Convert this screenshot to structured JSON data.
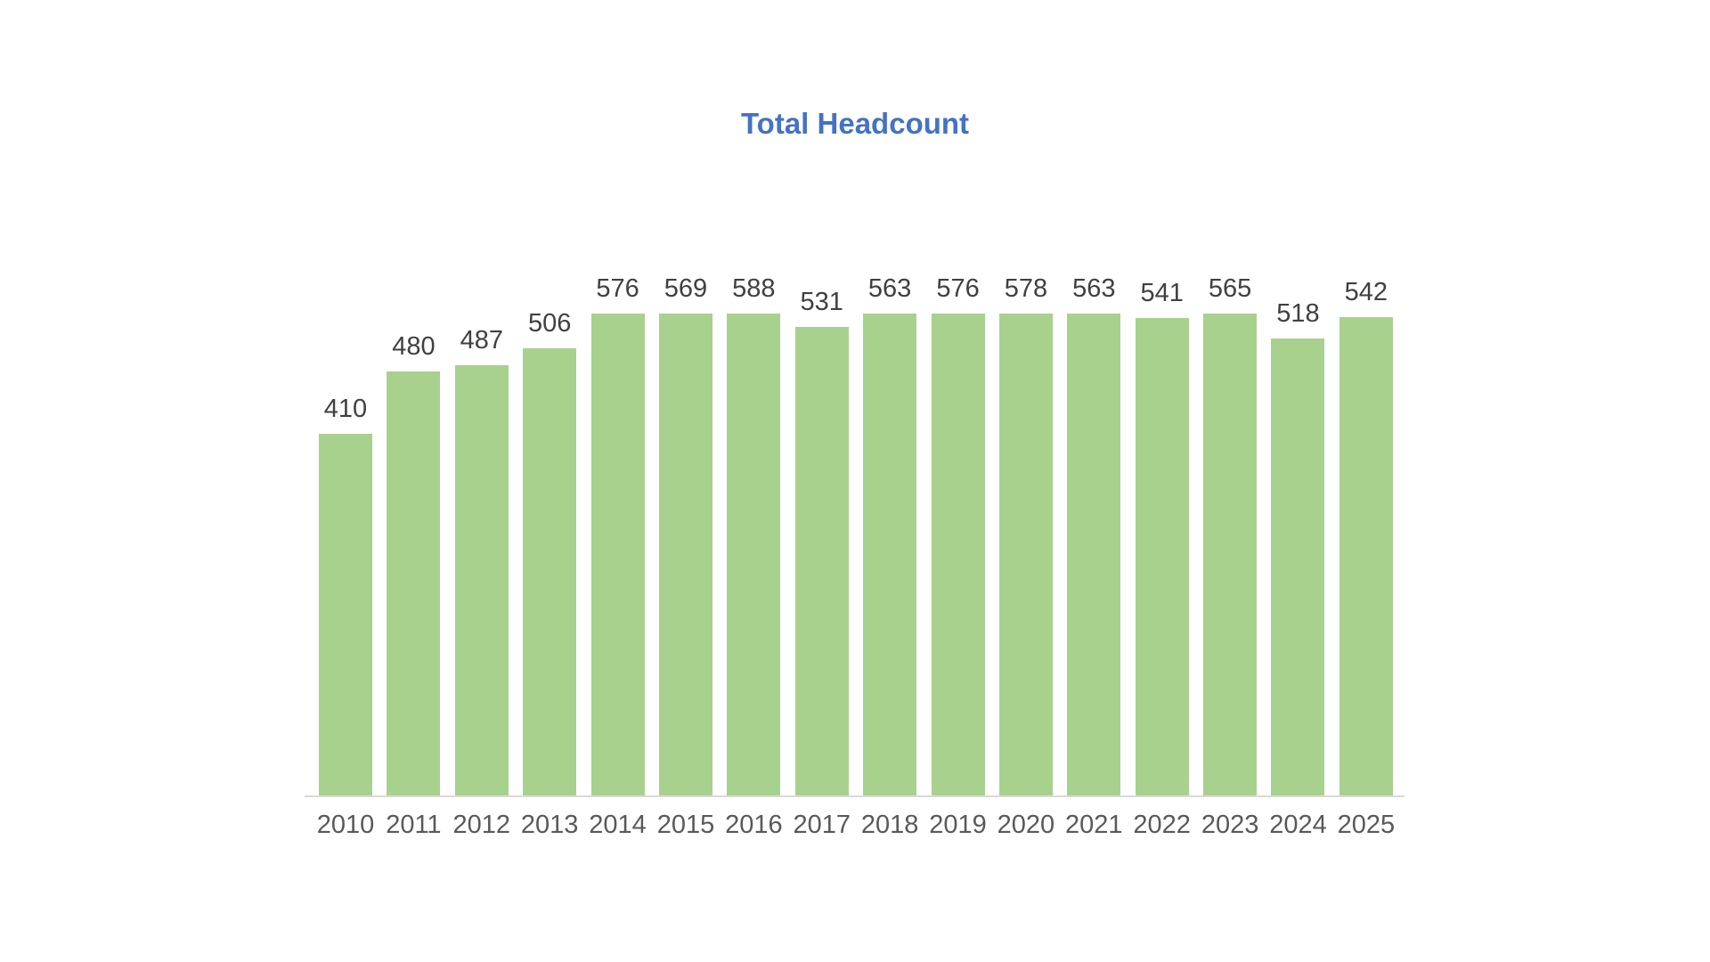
{
  "chart_data": {
    "type": "bar",
    "title": "Total Headcount",
    "categories": [
      "2010",
      "2011",
      "2012",
      "2013",
      "2014",
      "2015",
      "2016",
      "2017",
      "2018",
      "2019",
      "2020",
      "2021",
      "2022",
      "2023",
      "2024",
      "2025"
    ],
    "values": [
      410,
      480,
      487,
      506,
      576,
      569,
      588,
      531,
      563,
      576,
      578,
      563,
      541,
      565,
      518,
      542
    ],
    "xlabel": "",
    "ylabel": "",
    "ylim": [
      0,
      600
    ],
    "grid": false,
    "legend": "none",
    "y_axis_visible": false,
    "data_labels": "above-bars",
    "colors": {
      "bar_fill": "#A9D18E",
      "title_text": "#4472C4",
      "data_label_text": "#404040",
      "axis_label_text": "#595959",
      "axis_line": "#D9D9D9",
      "background": "#FFFFFF"
    }
  }
}
